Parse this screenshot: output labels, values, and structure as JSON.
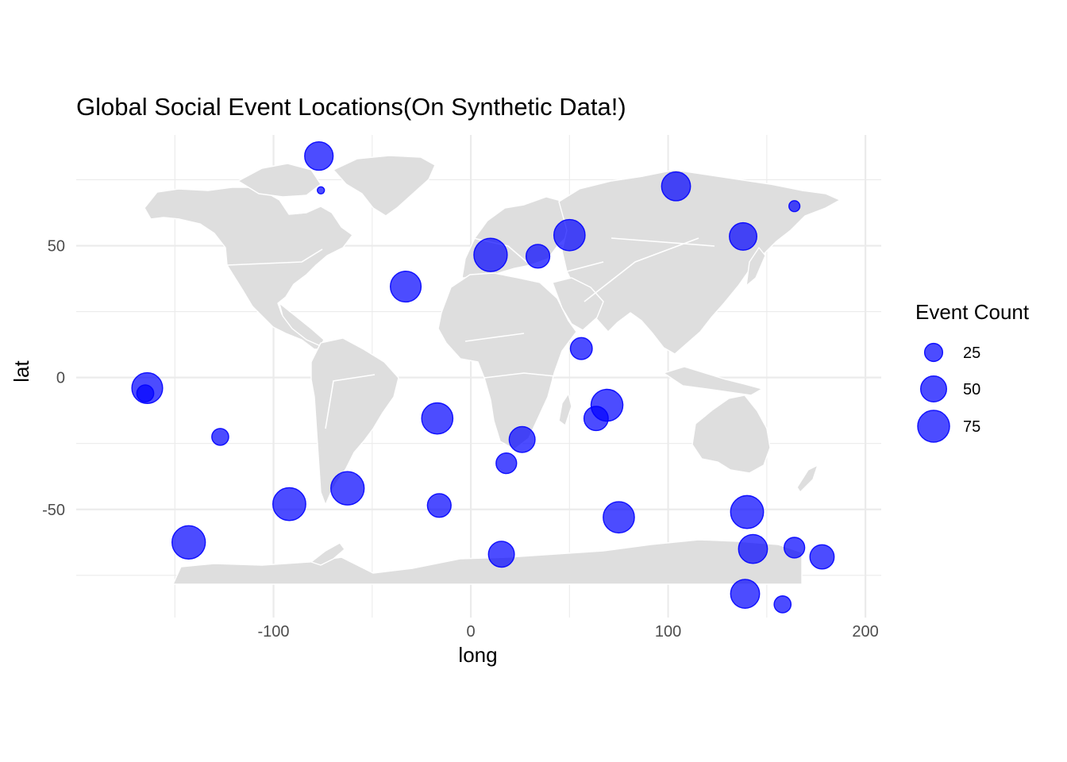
{
  "chart_data": {
    "type": "scatter",
    "title": "Global Social Event Locations(On Synthetic Data!)",
    "xlabel": "long",
    "ylabel": "lat",
    "xlim": [
      -200,
      208
    ],
    "ylim": [
      -91,
      92
    ],
    "x_ticks": [
      -100,
      0,
      100,
      200
    ],
    "x_tick_labels": [
      "-100",
      "0",
      "100",
      "200"
    ],
    "y_ticks": [
      -50,
      0,
      50
    ],
    "y_tick_labels": [
      "-50",
      "0",
      "50"
    ],
    "x_minor": [
      -150,
      -50,
      50,
      150
    ],
    "y_minor": [
      -75,
      -25,
      25,
      75
    ],
    "grid": true,
    "point_color": "#0000ff",
    "land_color": "#dedede",
    "size_scale": {
      "min_count": 5,
      "max_count": 90,
      "min_radius": 4.5,
      "max_radius": 22
    },
    "legend": {
      "title": "Event Count",
      "position": "right",
      "entries": [
        {
          "label": "25",
          "value": 25
        },
        {
          "label": "50",
          "value": 50
        },
        {
          "label": "75",
          "value": 75
        }
      ]
    },
    "points": [
      {
        "long": -77,
        "lat": 84,
        "count": 60
      },
      {
        "long": -76,
        "lat": 71,
        "count": 5
      },
      {
        "long": 104,
        "lat": 72.5,
        "count": 62
      },
      {
        "long": 164,
        "lat": 65,
        "count": 10
      },
      {
        "long": 50,
        "lat": 54,
        "count": 72
      },
      {
        "long": 138,
        "lat": 53.5,
        "count": 56
      },
      {
        "long": 10,
        "lat": 46.5,
        "count": 82
      },
      {
        "long": 34,
        "lat": 46,
        "count": 42
      },
      {
        "long": -33,
        "lat": 34.5,
        "count": 70
      },
      {
        "long": 56,
        "lat": 11,
        "count": 36
      },
      {
        "long": -164,
        "lat": -4,
        "count": 70
      },
      {
        "long": -165,
        "lat": -6,
        "count": 22
      },
      {
        "long": 69,
        "lat": -10.5,
        "count": 75
      },
      {
        "long": 63.5,
        "lat": -15.5,
        "count": 44
      },
      {
        "long": -17,
        "lat": -15.5,
        "count": 72
      },
      {
        "long": -127,
        "lat": -22.5,
        "count": 22
      },
      {
        "long": 26,
        "lat": -23.5,
        "count": 50
      },
      {
        "long": 18,
        "lat": -32.5,
        "count": 32
      },
      {
        "long": -62.5,
        "lat": -42,
        "count": 82
      },
      {
        "long": -92,
        "lat": -48,
        "count": 80
      },
      {
        "long": -16,
        "lat": -48.5,
        "count": 42
      },
      {
        "long": 140,
        "lat": -51,
        "count": 80
      },
      {
        "long": 75,
        "lat": -53,
        "count": 72
      },
      {
        "long": -143,
        "lat": -62.5,
        "count": 82
      },
      {
        "long": 143,
        "lat": -65,
        "count": 62
      },
      {
        "long": 164,
        "lat": -64.5,
        "count": 32
      },
      {
        "long": 15.5,
        "lat": -67,
        "count": 50
      },
      {
        "long": 178,
        "lat": -68,
        "count": 44
      },
      {
        "long": 139,
        "lat": -82,
        "count": 62
      },
      {
        "long": 158,
        "lat": -86,
        "count": 22
      }
    ]
  }
}
